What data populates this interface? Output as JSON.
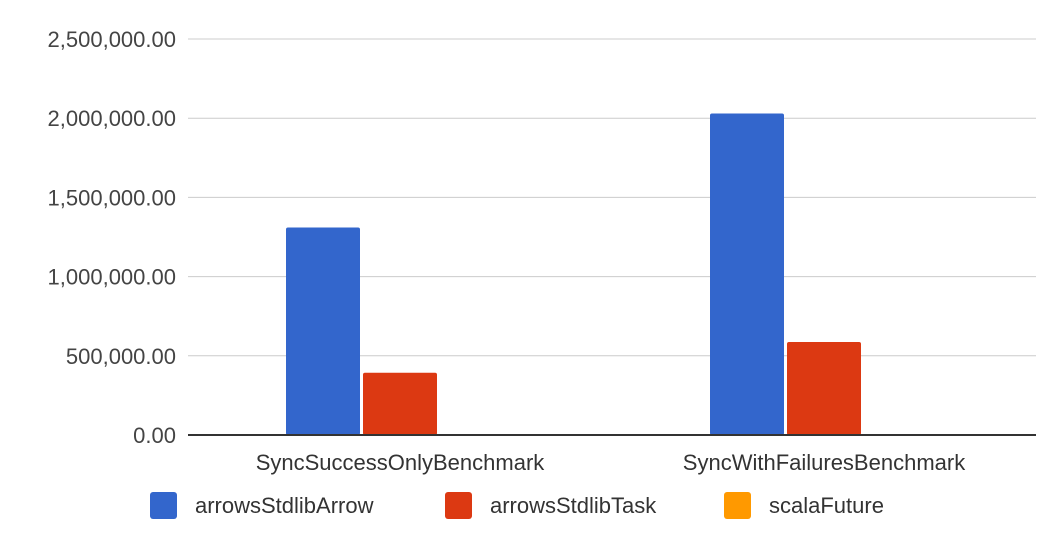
{
  "chart_data": {
    "type": "bar",
    "categories": [
      "SyncSuccessOnlyBenchmark",
      "SyncWithFailuresBenchmark"
    ],
    "series": [
      {
        "name": "arrowsStdlibArrow",
        "color": "#3366cc",
        "values": [
          1310000,
          2030000
        ]
      },
      {
        "name": "arrowsStdlibTask",
        "color": "#dc3912",
        "values": [
          393000,
          587000
        ]
      },
      {
        "name": "scalaFuture",
        "color": "#ff9900",
        "values": [
          0,
          0
        ]
      }
    ],
    "y_ticks": [
      "0.00",
      "500,000.00",
      "1,000,000.00",
      "1,500,000.00",
      "2,000,000.00",
      "2,500,000.00"
    ],
    "ylim": [
      0,
      2500000
    ],
    "grid": true,
    "legend_position": "bottom"
  }
}
